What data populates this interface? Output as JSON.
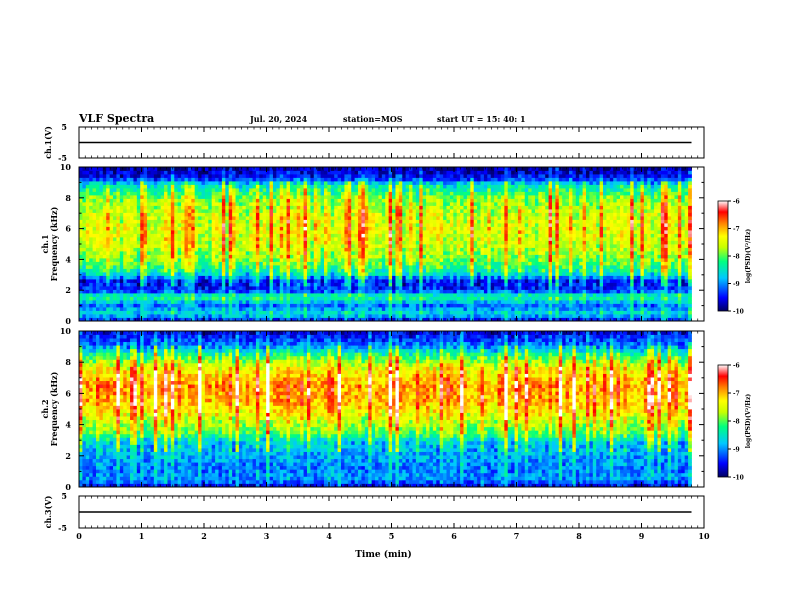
{
  "header": {
    "title": "VLF Spectra",
    "date": "Jul. 20, 2024",
    "station": "station=MOS",
    "start_ut": "start UT = 15: 40: 1"
  },
  "chart_data": [
    {
      "type": "line",
      "panel": "ch.1 waveform",
      "ylabel": "ch.1(V)",
      "ylim": [
        -5,
        5
      ],
      "yticks": [
        "5",
        "-5"
      ],
      "xlim": [
        0,
        10
      ],
      "x": [
        0,
        9.8
      ],
      "y": [
        0,
        0
      ]
    },
    {
      "type": "heatmap",
      "panel": "ch.1 spectrogram",
      "ylabel": "ch.1\nFrequency (kHz)",
      "ylim": [
        0,
        10
      ],
      "yticks": [
        "0",
        "2",
        "4",
        "6",
        "8",
        "10"
      ],
      "xlim": [
        0,
        10
      ],
      "data_extent_x": [
        0,
        9.8
      ],
      "band_profile": [
        {
          "freq_khz": 0.0,
          "level": -9.6
        },
        {
          "freq_khz": 0.5,
          "level": -8.6
        },
        {
          "freq_khz": 1.0,
          "level": -9.2
        },
        {
          "freq_khz": 1.6,
          "level": -8.2
        },
        {
          "freq_khz": 2.0,
          "level": -9.4
        },
        {
          "freq_khz": 2.6,
          "level": -9.5
        },
        {
          "freq_khz": 3.2,
          "level": -8.4
        },
        {
          "freq_khz": 4.0,
          "level": -7.9
        },
        {
          "freq_khz": 5.0,
          "level": -7.6
        },
        {
          "freq_khz": 6.0,
          "level": -7.5
        },
        {
          "freq_khz": 7.0,
          "level": -7.6
        },
        {
          "freq_khz": 8.0,
          "level": -7.9
        },
        {
          "freq_khz": 8.8,
          "level": -8.5
        },
        {
          "freq_khz": 9.3,
          "level": -9.5
        },
        {
          "freq_khz": 10.0,
          "level": -9.9
        }
      ],
      "colorbar": {
        "label": "log(PSD)(V²/Hz)",
        "range": [
          -10,
          -6
        ],
        "ticks": [
          "-6",
          "-7",
          "-8",
          "-9",
          "-10"
        ]
      }
    },
    {
      "type": "heatmap",
      "panel": "ch.2 spectrogram",
      "ylabel": "ch.2\nFrequency (kHz)",
      "ylim": [
        0,
        10
      ],
      "yticks": [
        "0",
        "2",
        "4",
        "6",
        "8",
        "10"
      ],
      "xlim": [
        0,
        10
      ],
      "data_extent_x": [
        0,
        9.8
      ],
      "band_profile": [
        {
          "freq_khz": 0.0,
          "level": -9.7
        },
        {
          "freq_khz": 0.5,
          "level": -9.0
        },
        {
          "freq_khz": 1.2,
          "level": -9.1
        },
        {
          "freq_khz": 2.0,
          "level": -8.9
        },
        {
          "freq_khz": 2.8,
          "level": -8.8
        },
        {
          "freq_khz": 3.5,
          "level": -8.0
        },
        {
          "freq_khz": 4.5,
          "level": -7.5
        },
        {
          "freq_khz": 5.5,
          "level": -7.0
        },
        {
          "freq_khz": 6.5,
          "level": -6.9
        },
        {
          "freq_khz": 7.5,
          "level": -7.3
        },
        {
          "freq_khz": 8.3,
          "level": -8.0
        },
        {
          "freq_khz": 9.0,
          "level": -9.0
        },
        {
          "freq_khz": 10.0,
          "level": -9.7
        }
      ],
      "colorbar": {
        "label": "log(PSD)(V²/Hz)",
        "range": [
          -10,
          -6
        ],
        "ticks": [
          "-6",
          "-7",
          "-8",
          "-9",
          "-10"
        ]
      }
    },
    {
      "type": "line",
      "panel": "ch.3 waveform",
      "ylabel": "ch.3(V)",
      "ylim": [
        -5,
        5
      ],
      "yticks": [
        "5",
        "-5"
      ],
      "xlim": [
        0,
        10
      ],
      "x": [
        0,
        9.8
      ],
      "y": [
        0,
        0
      ]
    }
  ],
  "xaxis": {
    "label": "Time (min)",
    "ticks": [
      "0",
      "1",
      "2",
      "3",
      "4",
      "5",
      "6",
      "7",
      "8",
      "9",
      "10"
    ]
  },
  "colors": {
    "background": "#ffffff",
    "axis": "#000000",
    "colormap": [
      "#000080",
      "#0000ff",
      "#00c8ff",
      "#00ff80",
      "#c8ff00",
      "#ffff00",
      "#ff8000",
      "#ff0000",
      "#ffffff"
    ]
  }
}
